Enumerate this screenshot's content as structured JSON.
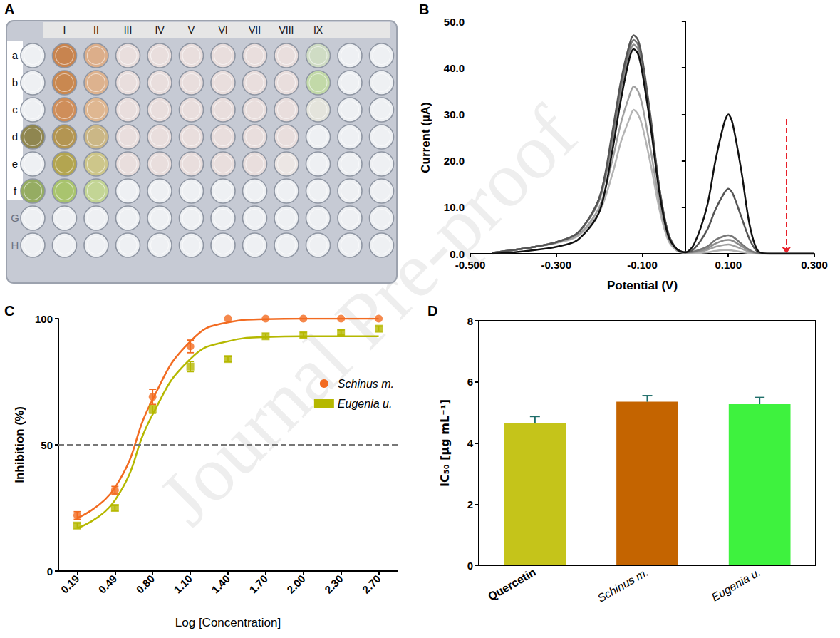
{
  "watermark": "Journal Pre-proof",
  "plate": {
    "panel": "A",
    "column_labels": [
      "I",
      "II",
      "III",
      "IV",
      "V",
      "VI",
      "VII",
      "VIII",
      "IX"
    ],
    "row_labels": [
      "a",
      "b",
      "c",
      "d",
      "e",
      "f",
      "G",
      "H"
    ],
    "wells": [
      [
        null,
        "#c8844f",
        "#dcae8a",
        "#e9dedd",
        "#e9dedd",
        "#e9dedd",
        "#e9dedd",
        "#e9dedd",
        "#e9dedd",
        "#cfdcc4",
        null,
        null
      ],
      [
        null,
        "#c98850",
        "#ddb28e",
        "#e9dedd",
        "#e9dedd",
        "#e9dedd",
        "#e9dedd",
        "#e9dedd",
        "#e9dedd",
        "#c2d9a8",
        null,
        null
      ],
      [
        null,
        "#cf8e5a",
        "#dfb791",
        "#e9dedd",
        "#e9dedd",
        "#e9dedd",
        "#e9dedd",
        "#e9dedd",
        "#e9dedd",
        "#e4e4dc",
        null,
        null
      ],
      [
        "#8f8650",
        "#b39552",
        "#cbb786",
        "#e9dedd",
        "#e9dedd",
        "#e9dedd",
        "#e9dedd",
        "#e9dedd",
        "#e9dedd",
        null,
        null,
        null
      ],
      [
        null,
        "#b3a550",
        "#cdc68a",
        "#e9dedd",
        "#e9dedd",
        "#e9dedd",
        "#e9dedd",
        "#e9dedd",
        "#ece6e4",
        null,
        null,
        null
      ],
      [
        "#95ac62",
        "#a9c46e",
        "#c3d595",
        null,
        null,
        null,
        null,
        null,
        null,
        null,
        null,
        null
      ],
      [
        null,
        null,
        null,
        null,
        null,
        null,
        null,
        null,
        null,
        null,
        null,
        null
      ],
      [
        null,
        null,
        null,
        null,
        null,
        null,
        null,
        null,
        null,
        null,
        null,
        null
      ]
    ]
  },
  "chart_data": [
    {
      "panel": "B",
      "type": "line",
      "x_label": "Potential (V)",
      "y_label": "Current (µA)",
      "x": [
        -0.45,
        -0.4,
        -0.35,
        -0.3,
        -0.25,
        -0.2,
        -0.17,
        -0.15,
        -0.13,
        -0.12,
        -0.11,
        -0.1,
        -0.08,
        -0.06,
        -0.04,
        -0.02,
        0,
        0.02,
        0.05,
        0.07,
        0.09,
        0.1,
        0.11,
        0.13,
        0.15,
        0.17,
        0.2,
        0.3
      ],
      "series": [
        {
          "color": "#111111",
          "values": [
            0,
            0.3,
            0.8,
            1.5,
            3,
            9,
            22,
            33,
            42,
            44,
            43,
            39,
            27,
            13,
            4,
            1,
            0.3,
            2,
            10,
            20,
            28,
            30,
            28,
            18,
            6,
            0.5,
            0,
            0
          ]
        },
        {
          "color": "#555555",
          "values": [
            0.2,
            0.8,
            1.5,
            2.5,
            4.5,
            12,
            26,
            37,
            45,
            47,
            46,
            42,
            29,
            14,
            4.5,
            1,
            0.3,
            1,
            5,
            9.5,
            13,
            14,
            13,
            8,
            3,
            0.3,
            0,
            0
          ]
        },
        {
          "color": "#777777",
          "values": [
            0.2,
            0.8,
            1.5,
            2.5,
            4.5,
            12,
            25,
            36,
            44,
            46,
            45,
            41,
            28,
            14,
            4.5,
            1,
            0.3,
            0.5,
            1.5,
            3,
            3.8,
            4,
            3.7,
            2.2,
            0.8,
            0.1,
            0,
            0
          ]
        },
        {
          "color": "#8c8c8c",
          "values": [
            0.2,
            0.8,
            1.5,
            2.5,
            4.5,
            11.5,
            24,
            35,
            43,
            45,
            44,
            40,
            28,
            13.5,
            4.5,
            1,
            0.3,
            0.4,
            1.1,
            2.2,
            2.9,
            3,
            2.8,
            1.7,
            0.6,
            0.1,
            0,
            0
          ]
        },
        {
          "color": "#a0a0a0",
          "values": [
            0.2,
            0.8,
            1.5,
            2.5,
            4,
            10,
            20,
            28,
            34,
            36,
            35,
            32,
            22,
            11,
            3.5,
            0.8,
            0.2,
            0.3,
            0.8,
            1.5,
            1.9,
            2,
            1.8,
            1.1,
            0.4,
            0,
            0,
            0
          ]
        },
        {
          "color": "#b4b4b4",
          "values": [
            0.2,
            0.8,
            1.5,
            2.3,
            3.8,
            9,
            17,
            24,
            29,
            31,
            30,
            27.5,
            19,
            9.5,
            3,
            0.7,
            0.2,
            0.1,
            0.3,
            0.6,
            0.8,
            0.8,
            0.7,
            0.4,
            0.1,
            0,
            0,
            0
          ]
        }
      ],
      "xlim": [
        -0.5,
        0.3
      ],
      "xticks": [
        {
          "value": -0.5,
          "label": "-0.500"
        },
        {
          "value": -0.3,
          "label": "-0.300"
        },
        {
          "value": -0.1,
          "label": "-0.100"
        },
        {
          "value": 0.1,
          "label": "0.100"
        },
        {
          "value": 0.3,
          "label": "0.300"
        }
      ],
      "ylim": [
        0,
        50
      ],
      "yticks": [
        {
          "value": 0,
          "label": "0.0"
        },
        {
          "value": 10,
          "label": "10.0"
        },
        {
          "value": 20,
          "label": "20.0"
        },
        {
          "value": 30,
          "label": "30.0"
        },
        {
          "value": 40,
          "label": "40.0"
        },
        {
          "value": 50,
          "label": "50.0"
        }
      ],
      "grid": false,
      "arrow": {
        "x": 0.235,
        "from": 29,
        "to": 0,
        "color": "#e8202a",
        "line_style": "dashed"
      }
    },
    {
      "panel": "C",
      "type": "scatter",
      "x_label": "Log [Concentration]",
      "y_label": "Inhibition (%)",
      "categories": [
        "0.19",
        "0.49",
        "0.80",
        "1.10",
        "1.40",
        "1.70",
        "2.00",
        "2.30",
        "2.70"
      ],
      "series": [
        {
          "name": "Schinus m.",
          "color": "#f26b21",
          "marker": "circle",
          "values": [
            22,
            32,
            69,
            89,
            100,
            100,
            100,
            100,
            100
          ],
          "errors": [
            1.5,
            1.5,
            3,
            2.5,
            0,
            0,
            0,
            0,
            0
          ],
          "fit": [
            21,
            33,
            68,
            91,
            98.5,
            99.8,
            100,
            100,
            100
          ]
        },
        {
          "name": "Eugenia u.",
          "color": "#b5b800",
          "marker": "square",
          "values": [
            18,
            25,
            64,
            81,
            84,
            93,
            93.5,
            94.5,
            96
          ],
          "errors": [
            1,
            1,
            1.5,
            2,
            1,
            1,
            1,
            1,
            1
          ],
          "fit": [
            17,
            28,
            62,
            84,
            91,
            92.7,
            93,
            93,
            93
          ]
        }
      ],
      "ylim": [
        0,
        100
      ],
      "yticks": [
        0,
        50,
        100
      ],
      "reference_line": 50,
      "legend": "right",
      "grid": false
    },
    {
      "panel": "D",
      "type": "bar",
      "y_label": "IC₅₀ [µg mL⁻¹]",
      "categories": [
        "Quercetin",
        "Schinus m.",
        "Eugenia u."
      ],
      "values": [
        4.65,
        5.35,
        5.27
      ],
      "errors": [
        0.22,
        0.2,
        0.22
      ],
      "colors": [
        "#c5c41a",
        "#c46400",
        "#3ef23e"
      ],
      "ylim": [
        0,
        8
      ],
      "yticks": [
        0,
        2,
        4,
        6,
        8
      ],
      "grid": false
    }
  ]
}
